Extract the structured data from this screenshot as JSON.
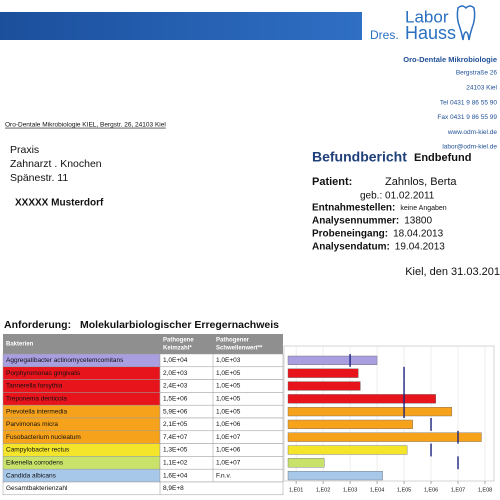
{
  "header": {
    "logo_top": "Labor",
    "logo_prefix": "Dres.",
    "logo_name": "Hauss",
    "lab_name": "Oro-Dentale Mikrobiologie",
    "address": [
      "Bergstraße 26",
      "24103 Kiel",
      "Tel 0431 9 86 55 90",
      "Fax 0431 9 86 55 99",
      "www.odm-kiel.de",
      "labor@odm-kiel.de"
    ],
    "sender_line": "Oro-Dentale Mikrobiologie KIEL,  Bergstr. 26,  24103 Kiel"
  },
  "recipient": {
    "lines": [
      "Praxis",
      "Zahnarzt . Knochen",
      "Spänestr. 11"
    ],
    "city": "XXXXX Musterdorf"
  },
  "report": {
    "title": "Befundbericht",
    "status": "Endbefund",
    "patient_label": "Patient:",
    "patient_name": "Zahnlos, Berta",
    "birth": "geb.: 01.02.2011",
    "fields": [
      {
        "label": "Entnahmestellen:",
        "value": "keine Angaben"
      },
      {
        "label": "Analysennummer:",
        "value": "13800"
      },
      {
        "label": "Probeneingang:",
        "value": "18.04.2013"
      },
      {
        "label": "Analysendatum:",
        "value": "19.04.2013"
      }
    ],
    "date": "Kiel, den 31.03.201"
  },
  "request": {
    "label": "Anforderung:",
    "value": "Molekularbiologischer Erregernachweis"
  },
  "table": {
    "headers": [
      [
        "Bakterien"
      ],
      [
        "Pathogene",
        "Keimzahl*"
      ],
      [
        "Pathogener",
        "Schwellenwert**"
      ]
    ],
    "rows": [
      {
        "name": "Aggregatibacter actinomycetemcomitans",
        "color": "#a99fe0",
        "count": {
          "value": 10000,
          "label": "1,0E+04"
        },
        "threshold": {
          "value": 1000,
          "label": "1,0E+03"
        }
      },
      {
        "name": "Porphyromonas gingivalis",
        "color": "#e8141c",
        "count": {
          "value": 2000,
          "label": "2,0E+03"
        },
        "threshold": {
          "value": 100000,
          "label": "1,0E+05"
        }
      },
      {
        "name": "Tannerella forsythia",
        "color": "#e8141c",
        "count": {
          "value": 2400,
          "label": "2,4E+03"
        },
        "threshold": {
          "value": 100000,
          "label": "1,0E+05"
        }
      },
      {
        "name": "Treponema denticola",
        "color": "#e8141c",
        "count": {
          "value": 1500000,
          "label": "1,5E+06"
        },
        "threshold": {
          "value": 100000,
          "label": "1,0E+05"
        }
      },
      {
        "name": "Prevotella intermedia",
        "color": "#f7a21b",
        "count": {
          "value": 5900000,
          "label": "5,9E+06"
        },
        "threshold": {
          "value": 100000,
          "label": "1,0E+05"
        }
      },
      {
        "name": "Parvimonas micra",
        "color": "#f7a21b",
        "count": {
          "value": 210000,
          "label": "2,1E+05"
        },
        "threshold": {
          "value": 1000000,
          "label": "1,0E+06"
        }
      },
      {
        "name": "Fusobacterium nucleatum",
        "color": "#f7a21b",
        "count": {
          "value": 74000000,
          "label": "7,4E+07"
        },
        "threshold": {
          "value": 10000000,
          "label": "1,0E+07"
        }
      },
      {
        "name": "Campylobacter rectus",
        "color": "#f5e52a",
        "count": {
          "value": 130000,
          "label": "1,3E+05"
        },
        "threshold": {
          "value": 1000000,
          "label": "1,0E+06"
        }
      },
      {
        "name": "Eikenella corrodens",
        "color": "#c8e26a",
        "count": {
          "value": 110,
          "label": "1,1E+02"
        },
        "threshold": {
          "value": 10000000,
          "label": "1,0E+07"
        }
      },
      {
        "name": "Candida albicans",
        "color": "#a8c8ea",
        "count": {
          "value": 16000,
          "label": "1,6E+04"
        },
        "threshold": "F.n.v."
      }
    ],
    "total": {
      "label": "Gesamtbakterienzahl",
      "value": "8,9E+8"
    }
  },
  "chart_data": {
    "type": "bar",
    "log_scale": true,
    "grid": true,
    "threshold_color": "#1a237e",
    "xlim": [
      5,
      100000000
    ],
    "xticks": [
      {
        "value": 10,
        "label": "1,E01"
      },
      {
        "value": 100,
        "label": "1,E02"
      },
      {
        "value": 1000,
        "label": "1,E03"
      },
      {
        "value": 10000,
        "label": "1,E04"
      },
      {
        "value": 100000,
        "label": "1,E05"
      },
      {
        "value": 1000000,
        "label": "1,E06"
      },
      {
        "value": 10000000,
        "label": "1,E07"
      },
      {
        "value": 100000000,
        "label": "1,E08"
      }
    ]
  }
}
